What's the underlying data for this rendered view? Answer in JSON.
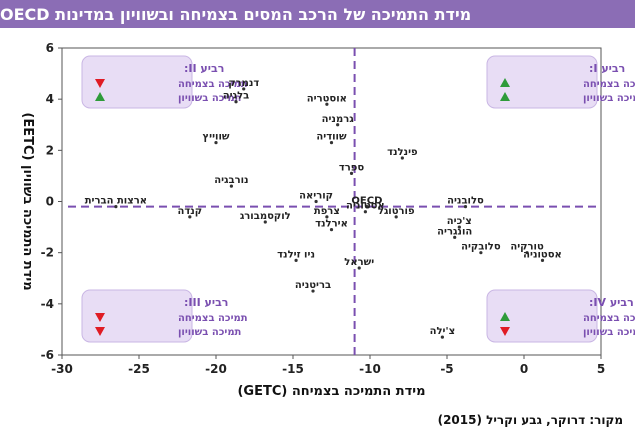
{
  "header": {
    "title": "מידת התמיכה של הרכב המסים בצמיחה ובשוויון במדינות OECD"
  },
  "source": {
    "label": "מקור: דרוקר, גבע וקריל",
    "year": "(2015)"
  },
  "colors": {
    "header_bg": "#8b6db5",
    "quadrant_bg": "#e8ddf5",
    "quadrant_border": "#c9b6e4",
    "quadrant_title": "#7a4fb0",
    "up": "#2e9b3a",
    "down": "#e01b24",
    "divider": "#7a4fb0"
  },
  "chart_data": {
    "type": "scatter",
    "xlabel": "מידת התמיכה בצמיחה (GETC)",
    "ylabel": "מידת התמיכה בשוויון (EETC)",
    "xlim": [
      -30,
      5
    ],
    "ylim": [
      -6,
      6
    ],
    "xticks": [
      -30,
      -25,
      -20,
      -15,
      -10,
      -5,
      0,
      5
    ],
    "yticks": [
      -6,
      -4,
      -2,
      0,
      2,
      4,
      6
    ],
    "divider_x": -11,
    "divider_y": -0.2,
    "points": [
      {
        "label": "דנמרק",
        "x": -18.2,
        "y": 4.4
      },
      {
        "label": "בלגיה",
        "x": -18.7,
        "y": 3.9
      },
      {
        "label": "אוסטריה",
        "x": -12.8,
        "y": 3.8
      },
      {
        "label": "גרמניה",
        "x": -12.1,
        "y": 3.0
      },
      {
        "label": "שוודיה",
        "x": -12.5,
        "y": 2.3
      },
      {
        "label": "שווייץ",
        "x": -20.0,
        "y": 2.3
      },
      {
        "label": "פינלנד",
        "x": -7.9,
        "y": 1.7
      },
      {
        "label": "ספרד",
        "x": -11.2,
        "y": 1.1
      },
      {
        "label": "נורבגיה",
        "x": -19.0,
        "y": 0.6
      },
      {
        "label": "קוריאה",
        "x": -13.5,
        "y": 0.0
      },
      {
        "label": "ארצות הברית",
        "x": -26.5,
        "y": -0.2
      },
      {
        "label": "קנדה",
        "x": -21.7,
        "y": -0.6
      },
      {
        "label": "צרפת",
        "x": -12.8,
        "y": -0.6
      },
      {
        "label": "OECD",
        "x": -10.2,
        "y": -0.2
      },
      {
        "label": "אסטוניה",
        "x": -10.3,
        "y": -0.4
      },
      {
        "label": "פורטוגל",
        "x": -8.3,
        "y": -0.6
      },
      {
        "label": "סלובניה",
        "x": -3.8,
        "y": -0.2
      },
      {
        "label": "לוקסמבורג",
        "x": -16.8,
        "y": -0.8
      },
      {
        "label": "אירלנד",
        "x": -12.5,
        "y": -1.1
      },
      {
        "label": "צ'כיה",
        "x": -4.2,
        "y": -1.0
      },
      {
        "label": "הונגריה",
        "x": -4.5,
        "y": -1.4
      },
      {
        "label": "סלובקיה",
        "x": -2.8,
        "y": -2.0
      },
      {
        "label": "טורקיה",
        "x": 0.2,
        "y": -2.0
      },
      {
        "label": "אסטוניה",
        "x": 1.2,
        "y": -2.3
      },
      {
        "label": "ניו זילנד",
        "x": -14.8,
        "y": -2.3
      },
      {
        "label": "ישראל",
        "x": -10.7,
        "y": -2.6
      },
      {
        "label": "בריטניה",
        "x": -13.7,
        "y": -3.5
      },
      {
        "label": "צ'ילה",
        "x": -5.3,
        "y": -5.3
      }
    ],
    "quadrants": [
      {
        "id": "q2",
        "title": "רביע II:",
        "growth": "תמיכה בצמיחה",
        "growth_dir": "down",
        "equality": "תמיכה בשוויון",
        "equality_dir": "up"
      },
      {
        "id": "q1",
        "title": "רביע I:",
        "growth": "תמיכה בצמיחה",
        "growth_dir": "up",
        "equality": "תמיכה בשוויון",
        "equality_dir": "up"
      },
      {
        "id": "q3",
        "title": "רביע III:",
        "growth": "תמיכה בצמיחה",
        "growth_dir": "down",
        "equality": "תמיכה בשוויון",
        "equality_dir": "down"
      },
      {
        "id": "q4",
        "title": "רביע IV:",
        "growth": "תמיכה בצמיחה",
        "growth_dir": "up",
        "equality": "תמיכה בשוויון",
        "equality_dir": "down"
      }
    ]
  }
}
